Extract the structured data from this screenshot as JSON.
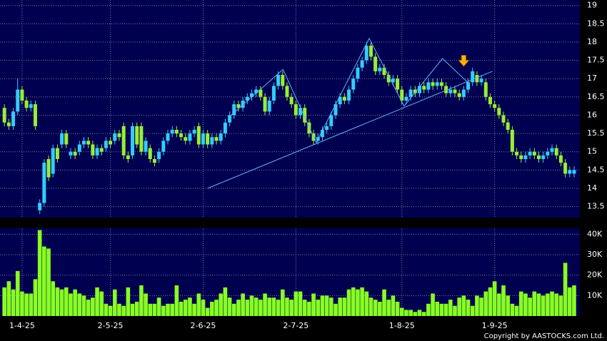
{
  "chart_data": [
    {
      "type": "candlestick",
      "up_color": "#33ccff",
      "down_color": "#99ee33",
      "grid": true,
      "background": "#000050",
      "ylim": [
        13.2,
        19.15
      ],
      "yticks": [
        13.5,
        14,
        14.5,
        15,
        15.5,
        16,
        16.5,
        17,
        17.5,
        18,
        18.5,
        19
      ],
      "xlim": [
        -1,
        130.3
      ],
      "xticks": [
        {
          "value": 4,
          "label": "1-4-25"
        },
        {
          "value": 24,
          "label": "2-5-25"
        },
        {
          "value": 45,
          "label": "2-6-25"
        },
        {
          "value": 66,
          "label": "2-7-25"
        },
        {
          "value": 90,
          "label": "1-8-25"
        },
        {
          "value": 111,
          "label": "1-9-25"
        }
      ],
      "open": [
        16.2,
        15.8,
        15.7,
        16.1,
        16.7,
        16.4,
        16.2,
        16.3,
        13.4,
        13.6,
        14.8,
        14.4,
        15.1,
        15.2,
        15.5,
        14.9,
        15.0,
        15.0,
        15.2,
        15.3,
        15.2,
        14.9,
        15.1,
        15.1,
        15.3,
        15.3,
        15.5,
        15.7,
        14.9,
        14.9,
        15.7,
        15.7,
        15.0,
        15.1,
        14.8,
        14.8,
        15.0,
        15.3,
        15.5,
        15.6,
        15.5,
        15.4,
        15.3,
        15.5,
        15.7,
        15.2,
        15.5,
        15.2,
        15.4,
        15.3,
        15.5,
        15.8,
        16.0,
        16.3,
        16.2,
        16.4,
        16.5,
        16.6,
        16.7,
        16.5,
        16.1,
        16.4,
        16.8,
        17.1,
        16.8,
        16.5,
        16.3,
        16.0,
        16.2,
        15.8,
        15.5,
        15.3,
        15.4,
        15.6,
        15.7,
        16.0,
        16.3,
        16.5,
        16.4,
        16.7,
        17.0,
        17.3,
        17.5,
        17.9,
        17.6,
        17.2,
        17.3,
        17.1,
        16.9,
        17.0,
        16.7,
        16.4,
        16.5,
        16.7,
        16.6,
        16.8,
        16.7,
        16.9,
        16.8,
        16.9,
        16.8,
        16.6,
        16.7,
        16.6,
        16.5,
        16.7,
        16.9,
        17.1,
        16.9,
        16.9,
        16.5,
        16.3,
        16.2,
        16.0,
        15.8,
        15.6,
        15.0,
        14.9,
        14.8,
        14.9,
        15.0,
        14.9,
        14.8,
        14.9,
        15.0,
        15.1,
        14.9,
        14.7,
        14.4,
        14.4
      ],
      "high": [
        16.3,
        15.9,
        16.2,
        17.0,
        16.8,
        16.5,
        16.4,
        16.4,
        13.7,
        14.8,
        14.9,
        15.2,
        15.2,
        15.6,
        15.6,
        15.1,
        15.1,
        15.3,
        15.4,
        15.4,
        15.3,
        15.2,
        15.2,
        15.4,
        15.4,
        15.6,
        15.6,
        15.8,
        15.0,
        15.8,
        15.8,
        15.8,
        15.4,
        15.2,
        14.9,
        15.1,
        15.4,
        15.6,
        15.7,
        15.7,
        15.6,
        15.5,
        15.6,
        15.7,
        15.8,
        15.6,
        15.6,
        15.5,
        15.5,
        15.6,
        15.9,
        16.1,
        16.4,
        16.4,
        16.5,
        16.6,
        16.7,
        16.8,
        16.8,
        16.6,
        16.5,
        16.9,
        17.2,
        17.2,
        16.9,
        16.6,
        16.4,
        16.3,
        16.3,
        15.9,
        15.6,
        15.5,
        15.7,
        15.8,
        16.1,
        16.4,
        16.6,
        16.6,
        16.8,
        17.1,
        17.4,
        17.6,
        18.0,
        18.0,
        17.7,
        17.4,
        17.4,
        17.2,
        17.1,
        17.1,
        16.8,
        16.6,
        16.8,
        16.8,
        16.9,
        16.9,
        17.0,
        17.0,
        17.0,
        17.0,
        16.9,
        16.8,
        16.8,
        16.7,
        16.8,
        17.0,
        17.3,
        17.2,
        17.1,
        17.0,
        16.6,
        16.4,
        16.3,
        16.1,
        15.9,
        15.7,
        15.1,
        15.0,
        15.0,
        15.1,
        15.1,
        15.0,
        15.0,
        15.1,
        15.2,
        15.2,
        15.0,
        14.8,
        14.6,
        14.6
      ],
      "low": [
        15.7,
        15.6,
        15.6,
        16.0,
        16.3,
        16.1,
        16.1,
        15.6,
        13.3,
        13.5,
        14.2,
        14.3,
        14.7,
        15.1,
        15.1,
        14.8,
        14.8,
        14.9,
        15.1,
        15.1,
        14.8,
        14.8,
        14.9,
        15.0,
        15.1,
        15.2,
        15.3,
        14.8,
        14.7,
        14.8,
        15.1,
        14.9,
        14.9,
        14.7,
        14.6,
        14.7,
        14.9,
        15.2,
        15.4,
        15.4,
        15.3,
        15.2,
        15.2,
        15.4,
        15.1,
        15.1,
        15.1,
        15.1,
        15.2,
        15.2,
        15.4,
        15.7,
        15.9,
        16.1,
        16.1,
        16.3,
        16.4,
        16.5,
        16.4,
        16.0,
        16.0,
        16.3,
        16.7,
        16.7,
        16.4,
        16.2,
        15.9,
        15.9,
        15.7,
        15.4,
        15.2,
        15.2,
        15.3,
        15.5,
        15.6,
        15.9,
        16.2,
        16.3,
        16.3,
        16.6,
        16.9,
        17.2,
        17.4,
        17.5,
        17.1,
        17.1,
        17.0,
        16.8,
        16.8,
        16.6,
        16.3,
        16.3,
        16.4,
        16.5,
        16.5,
        16.6,
        16.6,
        16.7,
        16.7,
        16.7,
        16.5,
        16.5,
        16.5,
        16.4,
        16.4,
        16.6,
        16.8,
        16.8,
        16.8,
        16.4,
        16.2,
        16.1,
        15.9,
        15.7,
        15.5,
        14.9,
        14.8,
        14.7,
        14.7,
        14.8,
        14.8,
        14.7,
        14.7,
        14.8,
        14.9,
        14.8,
        14.6,
        14.3,
        14.3,
        14.3
      ],
      "close": [
        15.8,
        15.7,
        16.1,
        16.7,
        16.4,
        16.2,
        16.3,
        15.7,
        13.6,
        14.7,
        14.3,
        15.1,
        14.8,
        15.5,
        15.2,
        15.0,
        14.9,
        15.2,
        15.3,
        15.2,
        14.9,
        15.1,
        15.0,
        15.3,
        15.2,
        15.5,
        15.4,
        14.9,
        14.8,
        15.7,
        15.2,
        15.0,
        15.3,
        14.8,
        14.7,
        15.0,
        15.3,
        15.5,
        15.6,
        15.5,
        15.4,
        15.3,
        15.5,
        15.6,
        15.2,
        15.5,
        15.2,
        15.4,
        15.3,
        15.5,
        15.8,
        16.0,
        16.3,
        16.2,
        16.4,
        16.5,
        16.6,
        16.7,
        16.5,
        16.1,
        16.4,
        16.8,
        17.1,
        16.8,
        16.5,
        16.3,
        16.0,
        16.2,
        15.8,
        15.5,
        15.3,
        15.4,
        15.6,
        15.7,
        16.0,
        16.3,
        16.5,
        16.4,
        16.7,
        17.0,
        17.3,
        17.5,
        17.9,
        17.6,
        17.2,
        17.3,
        17.1,
        16.9,
        17.0,
        16.7,
        16.4,
        16.5,
        16.7,
        16.6,
        16.8,
        16.7,
        16.9,
        16.8,
        16.9,
        16.8,
        16.6,
        16.7,
        16.6,
        16.5,
        16.7,
        16.9,
        17.2,
        16.9,
        17.0,
        16.5,
        16.3,
        16.2,
        16.0,
        15.8,
        15.6,
        15.0,
        14.9,
        14.8,
        14.9,
        15.0,
        14.9,
        14.8,
        14.9,
        15.0,
        15.1,
        14.9,
        14.7,
        14.4,
        14.5,
        14.5
      ],
      "trendline_color": "#66b3ff",
      "trendlines": [
        {
          "x": [
            46,
            110.5
          ],
          "y": [
            14.0,
            17.2
          ]
        },
        {
          "x": [
            51.3,
            63.1,
            70.6,
            82.6,
            90.5,
            99.2,
            105.3
          ],
          "y": [
            16.0,
            17.25,
            15.25,
            18.1,
            16.25,
            17.55,
            16.85
          ]
        }
      ],
      "arrow_color": "#ffb300",
      "arrow": {
        "x": 104,
        "y": 17.4
      }
    },
    {
      "type": "bar",
      "color": "#88ff22",
      "grid": true,
      "background": "#000050",
      "ylim": [
        0,
        42900
      ],
      "yticks": [
        {
          "value": 10000,
          "label": "10K"
        },
        {
          "value": 20000,
          "label": "20K"
        },
        {
          "value": 30000,
          "label": "30K"
        },
        {
          "value": 40000,
          "label": "40K"
        }
      ],
      "values": [
        14000,
        17000,
        13000,
        22000,
        12000,
        11000,
        11000,
        18000,
        42000,
        34000,
        33000,
        17000,
        14000,
        13000,
        14000,
        11000,
        13000,
        11000,
        10000,
        8000,
        9000,
        14000,
        12000,
        6000,
        5000,
        13000,
        6000,
        5000,
        14000,
        6000,
        7000,
        15000,
        11000,
        6000,
        6000,
        9000,
        5000,
        6000,
        6000,
        15000,
        7000,
        8000,
        9000,
        6000,
        11000,
        8000,
        4000,
        7000,
        8000,
        11000,
        14000,
        9000,
        6000,
        8000,
        11000,
        8000,
        10000,
        9000,
        8000,
        11000,
        9000,
        9000,
        8000,
        13000,
        9000,
        8000,
        12000,
        12000,
        8000,
        7000,
        11000,
        8000,
        10000,
        10000,
        9000,
        6000,
        9000,
        9000,
        13000,
        14000,
        13000,
        14000,
        12000,
        9000,
        8000,
        7000,
        13000,
        8000,
        10000,
        7000,
        4000,
        3000,
        3000,
        2000,
        3000,
        2000,
        6000,
        11000,
        7000,
        6000,
        6000,
        8000,
        5000,
        9000,
        10000,
        8000,
        5000,
        10000,
        9000,
        12000,
        14000,
        17000,
        11000,
        15000,
        10000,
        6000,
        5000,
        12000,
        11000,
        9000,
        12000,
        11000,
        10000,
        11000,
        12000,
        11000,
        10000,
        26000,
        14000,
        15000
      ],
      "copyright": "Copyright by AASTOCKS.com Ltd."
    }
  ]
}
